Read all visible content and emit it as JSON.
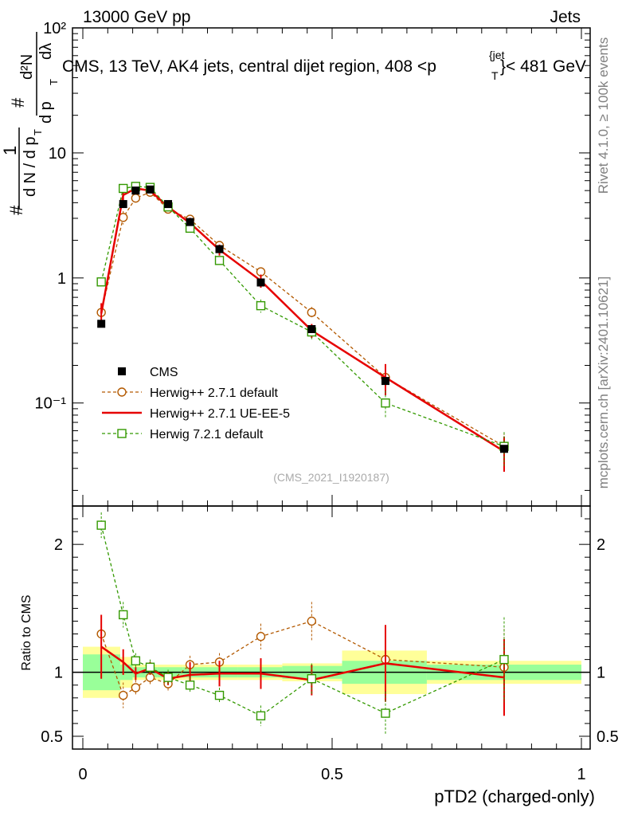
{
  "header": {
    "left": "13000 GeV pp",
    "right": "Jets",
    "rivet": "Rivet 4.1.0, ≥ 100k events",
    "mcplots": "mcplots.cern.ch [arXiv:2401.10621]",
    "watermark": "(CMS_2021_I1920187)"
  },
  "chart_data": {
    "type": "line",
    "title": "CMS, 13 TeV, AK4 jets, central dijet region, 408 < p_T^{jet} < 481 GeV",
    "title_main": "CMS, 13 TeV, AK4 jets, central dijet region, 408 <p",
    "title_sup": "{jet",
    "title_sub": "T",
    "title_end": "}< 481 GeV",
    "xlabel": "pTD2 (charged-only)",
    "ylabel": "1/N dN/dλ",
    "ylabel_parts": {
      "hash": "#",
      "one": "1",
      "dN": "d N / d p",
      "T": "T",
      "num_top": "d²N",
      "num_mid": "d p",
      "num_mid_sub": "T",
      "num_end": "dλ"
    },
    "xlim": [
      0,
      1
    ],
    "ylim_main": [
      0.015,
      100
    ],
    "ylim_ratio": [
      0.4,
      2.3
    ],
    "ratio_ylabel": "Ratio to CMS",
    "x_ticks": [
      "0",
      "0.5",
      "1"
    ],
    "y_ticks_main": [
      "10⁻¹",
      "1",
      "10",
      "10²"
    ],
    "y_ticks_ratio": [
      "0.5",
      "1",
      "2"
    ],
    "bins": [
      [
        0.0,
        0.075
      ],
      [
        0.075,
        0.1
      ],
      [
        0.1,
        0.125
      ],
      [
        0.125,
        0.15
      ],
      [
        0.15,
        0.2
      ],
      [
        0.2,
        0.25
      ],
      [
        0.25,
        0.31
      ],
      [
        0.31,
        0.4
      ],
      [
        0.4,
        0.52
      ],
      [
        0.52,
        0.69
      ],
      [
        0.69,
        1.0
      ]
    ],
    "x": [
      0.037,
      0.081,
      0.106,
      0.135,
      0.171,
      0.215,
      0.274,
      0.357,
      0.459,
      0.607,
      0.845
    ],
    "cms": {
      "name": "CMS",
      "values": [
        0.43,
        3.9,
        5.0,
        5.1,
        3.9,
        2.8,
        1.7,
        0.92,
        0.39,
        0.15,
        0.043
      ]
    },
    "band_inner": [
      0.14,
      0.06,
      0.04,
      0.04,
      0.04,
      0.04,
      0.04,
      0.04,
      0.05,
      0.09,
      0.06
    ],
    "band_outer": [
      0.2,
      0.12,
      0.06,
      0.06,
      0.06,
      0.06,
      0.06,
      0.06,
      0.07,
      0.17,
      0.09
    ],
    "series": [
      {
        "name": "Herwig++ 2.7.1 default",
        "color": "#b35900",
        "marker": "circle",
        "dash": true,
        "values": [
          0.53,
          3.05,
          4.35,
          4.85,
          3.55,
          2.95,
          1.82,
          1.12,
          0.53,
          0.16,
          0.045
        ],
        "ratio": [
          1.3,
          0.82,
          0.88,
          0.96,
          0.91,
          1.06,
          1.08,
          1.28,
          1.4,
          1.1,
          1.04
        ],
        "ratio_err": [
          0.1,
          0.1,
          0.06,
          0.06,
          0.06,
          0.07,
          0.07,
          0.1,
          0.15,
          0.2,
          0.3
        ]
      },
      {
        "name": "Herwig++ 2.7.1 UE-EE-5",
        "color": "#e60000",
        "marker": "none",
        "dash": false,
        "values": [
          0.52,
          4.6,
          5.2,
          5.0,
          3.7,
          2.75,
          1.68,
          0.95,
          0.38,
          0.16,
          0.041
        ],
        "ratio": [
          1.2,
          1.08,
          0.99,
          1.03,
          0.95,
          0.98,
          0.99,
          0.99,
          0.94,
          1.07,
          0.96
        ],
        "ratio_err": [
          0.25,
          0.1,
          0.05,
          0.05,
          0.05,
          0.1,
          0.1,
          0.12,
          0.12,
          0.3,
          0.3
        ]
      },
      {
        "name": "Herwig 7.2.1 default",
        "color": "#339900",
        "marker": "square",
        "dash": true,
        "values": [
          0.93,
          5.2,
          5.4,
          5.3,
          3.7,
          2.5,
          1.38,
          0.6,
          0.37,
          0.1,
          0.045
        ],
        "ratio": [
          2.15,
          1.45,
          1.09,
          1.04,
          0.96,
          0.9,
          0.82,
          0.66,
          0.95,
          0.68,
          1.1
        ],
        "ratio_err": [
          0.1,
          0.1,
          0.06,
          0.06,
          0.06,
          0.06,
          0.06,
          0.08,
          0.12,
          0.17,
          0.33
        ]
      }
    ]
  }
}
